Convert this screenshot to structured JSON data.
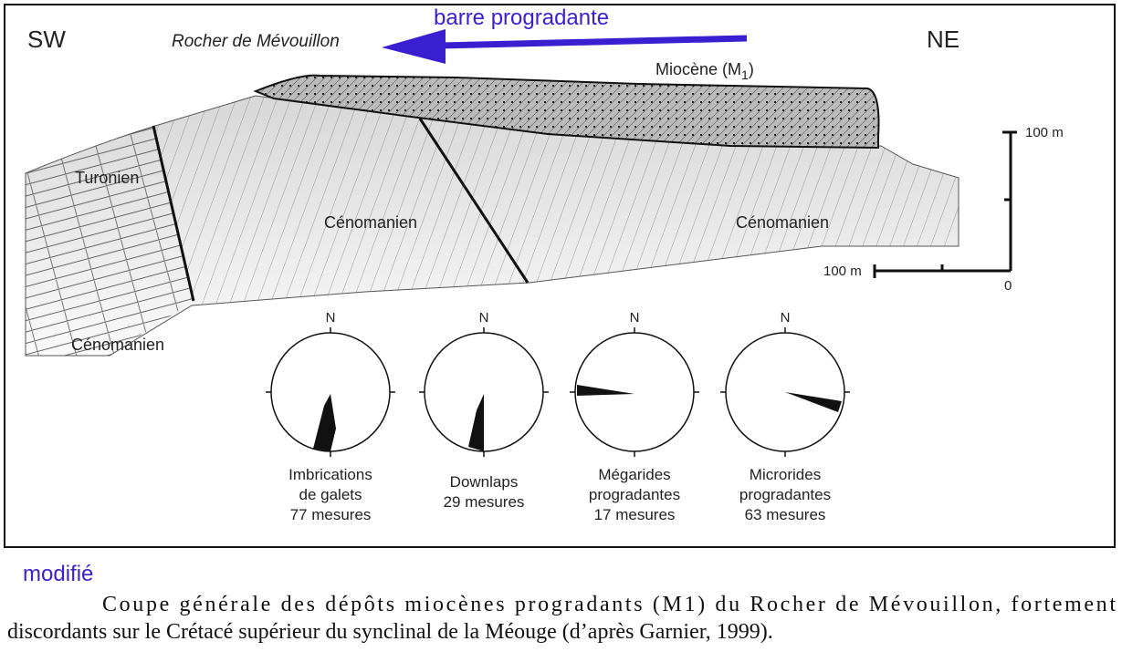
{
  "header": {
    "sw": "SW",
    "ne": "NE",
    "arrow_label": "barre progradante",
    "place": "Rocher de Mévouillon"
  },
  "section": {
    "miocene": {
      "label": "Miocène (M",
      "subscript": "1",
      "close": ")"
    },
    "units": {
      "turonien": "Turonien",
      "cenomanien_center": "Cénomanien",
      "cenomanien_right": "Cénomanien",
      "cenomanien_left": "Cénomanien"
    },
    "scale": {
      "vertical": "100 m",
      "horizontal": "100 m",
      "origin": "0"
    }
  },
  "roses": [
    {
      "north": "N",
      "lines": [
        "Imbrications",
        "de galets",
        "77 mesures"
      ]
    },
    {
      "north": "N",
      "lines": [
        "Downlaps",
        "29 mesures"
      ]
    },
    {
      "north": "N",
      "lines": [
        "Mégarides",
        "progradantes",
        "17 mesures"
      ]
    },
    {
      "north": "N",
      "lines": [
        "Microrides",
        "progradantes",
        "63 mesures"
      ]
    }
  ],
  "caption": {
    "note": "modifié",
    "line1": "Coupe générale des dépôts miocènes progradants (M1) du Rocher de Mévouillon, fortement",
    "line2": "discordants sur le Crétacé supérieur du synclinal de la Méouge (d’après Garnier, 1999)."
  }
}
